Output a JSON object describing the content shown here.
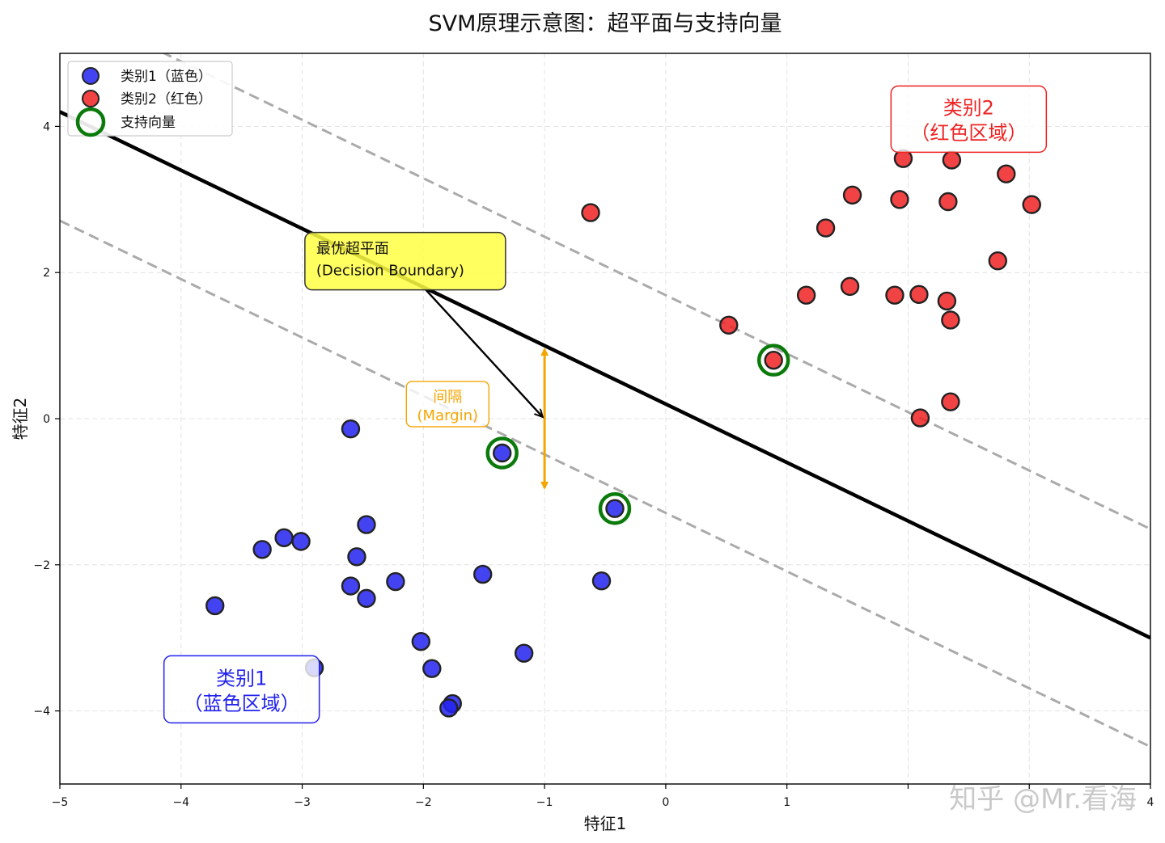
{
  "chart_data": {
    "type": "scatter",
    "title": "SVM原理示意图：超平面与支持向量",
    "xlabel": "特征1",
    "ylabel": "特征2",
    "xlim": [
      -5,
      4
    ],
    "ylim": [
      -5,
      5
    ],
    "xticks": [
      -5,
      -4,
      -3,
      -2,
      -1,
      0,
      1,
      2,
      3,
      4
    ],
    "yticks": [
      -4,
      -2,
      0,
      2,
      4
    ],
    "xtick_labels": [
      "−5",
      "−4",
      "−3",
      "−2",
      "−1",
      "0",
      "1",
      "",
      "",
      "4"
    ],
    "ytick_labels": [
      "−4",
      "−2",
      "0",
      "2",
      "4"
    ],
    "grid": true,
    "colors": {
      "class1": "#2222ee",
      "class2": "#ee2222",
      "support": "#0a7a0a",
      "hyperplane": "#000000",
      "margin_lines": "#aaaaaa",
      "margin_arrow": "#f5a500",
      "annotation_fill": "#ffff44"
    },
    "hyperplane": {
      "slope": -0.8,
      "intercept": 0.2
    },
    "margin_offset": 1.49,
    "series": [
      {
        "name": "类别1（蓝色）",
        "color": "#2222ee",
        "points": [
          [
            -2.6,
            -0.14
          ],
          [
            -1.35,
            -0.47
          ],
          [
            -0.42,
            -1.23
          ],
          [
            -3.72,
            -2.56
          ],
          [
            -3.33,
            -1.79
          ],
          [
            -3.15,
            -1.63
          ],
          [
            -3.01,
            -1.68
          ],
          [
            -2.47,
            -1.45
          ],
          [
            -2.55,
            -1.89
          ],
          [
            -2.6,
            -2.29
          ],
          [
            -2.47,
            -2.46
          ],
          [
            -2.23,
            -2.23
          ],
          [
            -1.51,
            -2.13
          ],
          [
            -0.53,
            -2.22
          ],
          [
            -2.02,
            -3.05
          ],
          [
            -1.93,
            -3.42
          ],
          [
            -1.17,
            -3.21
          ],
          [
            -1.76,
            -3.9
          ],
          [
            -1.79,
            -3.96
          ],
          [
            -2.9,
            -3.41
          ]
        ]
      },
      {
        "name": "类别2（红色）",
        "color": "#ee2222",
        "points": [
          [
            -0.62,
            2.82
          ],
          [
            0.52,
            1.28
          ],
          [
            0.89,
            0.8
          ],
          [
            1.16,
            1.69
          ],
          [
            1.32,
            2.61
          ],
          [
            1.52,
            1.81
          ],
          [
            1.54,
            3.06
          ],
          [
            1.89,
            1.69
          ],
          [
            1.93,
            3.0
          ],
          [
            1.96,
            3.56
          ],
          [
            2.09,
            1.7
          ],
          [
            2.1,
            0.01
          ],
          [
            2.32,
            1.61
          ],
          [
            2.33,
            2.97
          ],
          [
            2.35,
            1.35
          ],
          [
            2.35,
            0.23
          ],
          [
            2.36,
            3.54
          ],
          [
            2.74,
            2.16
          ],
          [
            2.81,
            3.35
          ],
          [
            3.02,
            2.93
          ]
        ]
      }
    ],
    "support_vectors": [
      [
        -1.35,
        -0.47
      ],
      [
        -0.42,
        -1.23
      ],
      [
        0.89,
        0.8
      ]
    ],
    "legend": {
      "location": "upper-left",
      "entries": [
        "类别1（蓝色）",
        "类别2（红色）",
        "支持向量"
      ]
    },
    "annotations": {
      "hyperplane_label_line1": "最优超平面",
      "hyperplane_label_line2": "(Decision Boundary)",
      "hyperplane_label_anchor": [
        -2.15,
        2.15
      ],
      "hyperplane_arrow_from": [
        -2.0,
        1.8
      ],
      "hyperplane_arrow_to": [
        -1.02,
        0.03
      ],
      "margin_label_line1": "间隔",
      "margin_label_line2": "(Margin)",
      "margin_label_anchor": [
        -1.8,
        0.2
      ],
      "margin_arrow_x": -1.0,
      "margin_arrow_y": [
        -0.95,
        0.95
      ],
      "region1_line1": "类别1",
      "region1_line2": "（蓝色区域）",
      "region1_anchor": [
        -3.5,
        -3.71
      ],
      "region2_line1": "类别2",
      "region2_line2": "（红色区域）",
      "region2_anchor": [
        2.5,
        4.1
      ]
    },
    "watermark": "知乎 @Mr.看海"
  }
}
